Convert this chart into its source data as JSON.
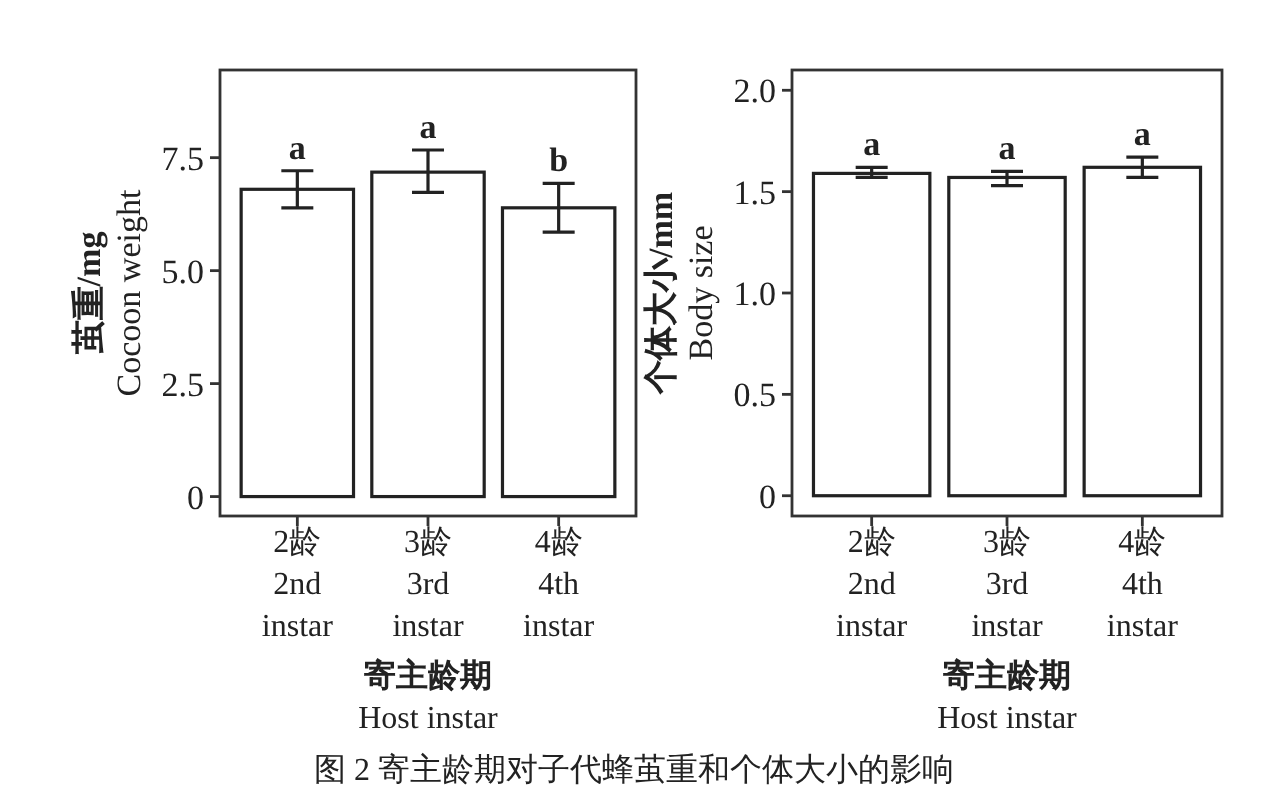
{
  "chart_data": [
    {
      "type": "bar",
      "ylabel": "茧重/mg\nCocoon weight",
      "xlabel": "寄主龄期\nHost instar",
      "categories": [
        "2龄\n2nd\ninstar",
        "3龄\n3rd\ninstar",
        "4龄\n4th\ninstar"
      ],
      "values": [
        6.8,
        7.18,
        6.39
      ],
      "color": "#ffffff",
      "errors": [
        [
          6.39,
          7.21
        ],
        [
          6.73,
          7.67
        ],
        [
          5.85,
          6.93
        ]
      ],
      "ylim": [
        -0.43,
        9.44
      ],
      "yticks": [
        0,
        2.5,
        {
          "value": 5,
          "label": "5.0"
        },
        7.5
      ],
      "annotations": [
        {
          "text": "a",
          "x": "2龄\n2nd\ninstar",
          "y": 7.21
        },
        {
          "text": "a",
          "x": "3龄\n3rd\ninstar",
          "y": 7.67
        },
        {
          "text": "b",
          "x": "4龄\n4th\ninstar",
          "y": 6.93
        }
      ]
    },
    {
      "type": "bar",
      "ylabel": "个体大小/mm\nBody size",
      "xlabel": "寄主龄期\nHost instar",
      "categories": [
        "2龄\n2nd\ninstar",
        "3龄\n3rd\ninstar",
        "4龄\n4th\ninstar"
      ],
      "values": [
        1.59,
        1.57,
        1.62
      ],
      "color": "#ffffff",
      "errors": [
        [
          1.57,
          1.62
        ],
        [
          1.53,
          1.6
        ],
        [
          1.57,
          1.67
        ]
      ],
      "ylim": [
        -0.1,
        2.1
      ],
      "yticks": [
        0,
        0.5,
        {
          "value": 1,
          "label": "1.0"
        },
        1.5,
        {
          "value": 2,
          "label": "2.0"
        }
      ],
      "annotations": [
        {
          "text": "a",
          "x": "2龄\n2nd\ninstar",
          "y": 1.62
        },
        {
          "text": "a",
          "x": "3龄\n3rd\ninstar",
          "y": 1.6
        },
        {
          "text": "a",
          "x": "4龄\n4th\ninstar",
          "y": 1.67
        },
        "图 2  寄主龄期对子代蜂茧重和个体大小的影响"
      ]
    }
  ]
}
